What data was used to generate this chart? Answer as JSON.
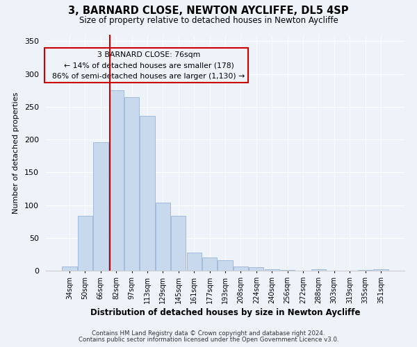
{
  "title": "3, BARNARD CLOSE, NEWTON AYCLIFFE, DL5 4SP",
  "subtitle": "Size of property relative to detached houses in Newton Aycliffe",
  "xlabel": "Distribution of detached houses by size in Newton Aycliffe",
  "ylabel": "Number of detached properties",
  "bar_color": "#c8d9ee",
  "bar_edge_color": "#9ab5d8",
  "categories": [
    "34sqm",
    "50sqm",
    "66sqm",
    "82sqm",
    "97sqm",
    "113sqm",
    "129sqm",
    "145sqm",
    "161sqm",
    "177sqm",
    "193sqm",
    "208sqm",
    "224sqm",
    "240sqm",
    "256sqm",
    "272sqm",
    "288sqm",
    "303sqm",
    "319sqm",
    "335sqm",
    "351sqm"
  ],
  "values": [
    6,
    84,
    196,
    275,
    265,
    236,
    104,
    84,
    28,
    20,
    16,
    6,
    5,
    2,
    1,
    0,
    2,
    0,
    0,
    1,
    2
  ],
  "ylim": [
    0,
    360
  ],
  "yticks": [
    0,
    50,
    100,
    150,
    200,
    250,
    300,
    350
  ],
  "annotation_title": "3 BARNARD CLOSE: 76sqm",
  "annotation_line1": "← 14% of detached houses are smaller (178)",
  "annotation_line2": "86% of semi-detached houses are larger (1,130) →",
  "marker_color": "#cc0000",
  "footer1": "Contains HM Land Registry data © Crown copyright and database right 2024.",
  "footer2": "Contains public sector information licensed under the Open Government Licence v3.0.",
  "background_color": "#eef2f9",
  "annotation_box_edge": "#cc0000",
  "grid_color": "#ffffff",
  "spine_color": "#cccccc"
}
